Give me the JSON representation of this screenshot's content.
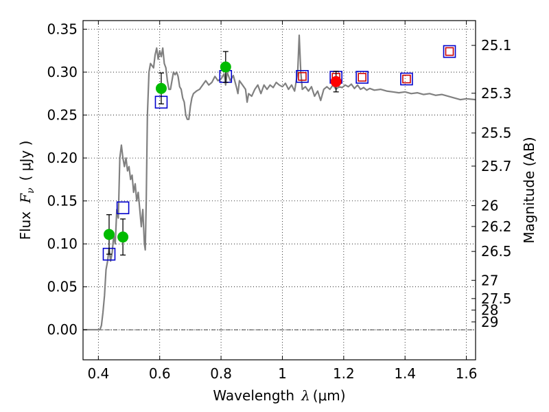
{
  "chart_data": {
    "type": "scatter",
    "xlabel_text": "Wavelength",
    "xlabel_math": "λ",
    "xlabel_unit": "(μm)",
    "ylabel_text": "Flux",
    "ylabel_math": "F",
    "ylabel_sub": "ν",
    "ylabel_unit": "( μJy )",
    "y2label": "Magnitude (AB)",
    "xlim": [
      0.35,
      1.63
    ],
    "ylim": [
      -0.035,
      0.36
    ],
    "xticks": [
      0.4,
      0.6,
      0.8,
      1.0,
      1.2,
      1.4,
      1.6
    ],
    "xtick_labels": [
      "0.4",
      "0.6",
      "0.8",
      "1",
      "1.2",
      "1.4",
      "1.6"
    ],
    "yticks": [
      0.0,
      0.05,
      0.1,
      0.15,
      0.2,
      0.25,
      0.3,
      0.35
    ],
    "ytick_labels": [
      "0.00",
      "0.05",
      "0.10",
      "0.15",
      "0.20",
      "0.25",
      "0.30",
      "0.35"
    ],
    "mag_ticks": [
      {
        "mag": 25.1,
        "label": "25.1"
      },
      {
        "mag": 25.3,
        "label": "25.3"
      },
      {
        "mag": 25.5,
        "label": "25.5"
      },
      {
        "mag": 25.7,
        "label": "25.7"
      },
      {
        "mag": 26.0,
        "label": "26"
      },
      {
        "mag": 26.2,
        "label": "26.2"
      },
      {
        "mag": 26.5,
        "label": "26.5"
      },
      {
        "mag": 27.0,
        "label": "27"
      },
      {
        "mag": 27.5,
        "label": "27.5"
      },
      {
        "mag": 28.0,
        "label": "28"
      },
      {
        "mag": 29.0,
        "label": "29"
      }
    ],
    "zero_line": true,
    "grid": true,
    "series": [
      {
        "name": "model spectrum",
        "kind": "line",
        "color": "#808080",
        "points": [
          [
            0.35,
            0.0
          ],
          [
            0.405,
            0.0
          ],
          [
            0.41,
            0.005
          ],
          [
            0.415,
            0.02
          ],
          [
            0.42,
            0.04
          ],
          [
            0.425,
            0.07
          ],
          [
            0.43,
            0.08
          ],
          [
            0.435,
            0.095
          ],
          [
            0.44,
            0.08
          ],
          [
            0.445,
            0.09
          ],
          [
            0.45,
            0.11
          ],
          [
            0.455,
            0.1
          ],
          [
            0.46,
            0.14
          ],
          [
            0.465,
            0.13
          ],
          [
            0.47,
            0.2
          ],
          [
            0.475,
            0.215
          ],
          [
            0.48,
            0.2
          ],
          [
            0.485,
            0.19
          ],
          [
            0.49,
            0.2
          ],
          [
            0.495,
            0.185
          ],
          [
            0.5,
            0.19
          ],
          [
            0.505,
            0.175
          ],
          [
            0.51,
            0.18
          ],
          [
            0.515,
            0.16
          ],
          [
            0.52,
            0.17
          ],
          [
            0.525,
            0.15
          ],
          [
            0.53,
            0.16
          ],
          [
            0.535,
            0.14
          ],
          [
            0.54,
            0.12
          ],
          [
            0.545,
            0.14
          ],
          [
            0.55,
            0.1
          ],
          [
            0.553,
            0.093
          ],
          [
            0.556,
            0.15
          ],
          [
            0.56,
            0.25
          ],
          [
            0.565,
            0.3
          ],
          [
            0.57,
            0.31
          ],
          [
            0.58,
            0.305
          ],
          [
            0.585,
            0.32
          ],
          [
            0.59,
            0.328
          ],
          [
            0.595,
            0.315
          ],
          [
            0.6,
            0.325
          ],
          [
            0.605,
            0.318
          ],
          [
            0.61,
            0.328
          ],
          [
            0.615,
            0.31
          ],
          [
            0.62,
            0.305
          ],
          [
            0.625,
            0.29
          ],
          [
            0.63,
            0.28
          ],
          [
            0.635,
            0.28
          ],
          [
            0.64,
            0.29
          ],
          [
            0.645,
            0.3
          ],
          [
            0.65,
            0.297
          ],
          [
            0.655,
            0.3
          ],
          [
            0.66,
            0.295
          ],
          [
            0.665,
            0.283
          ],
          [
            0.67,
            0.28
          ],
          [
            0.675,
            0.27
          ],
          [
            0.68,
            0.265
          ],
          [
            0.685,
            0.25
          ],
          [
            0.69,
            0.245
          ],
          [
            0.695,
            0.245
          ],
          [
            0.7,
            0.26
          ],
          [
            0.705,
            0.27
          ],
          [
            0.71,
            0.275
          ],
          [
            0.72,
            0.278
          ],
          [
            0.73,
            0.28
          ],
          [
            0.74,
            0.285
          ],
          [
            0.75,
            0.29
          ],
          [
            0.76,
            0.285
          ],
          [
            0.77,
            0.288
          ],
          [
            0.78,
            0.295
          ],
          [
            0.79,
            0.29
          ],
          [
            0.8,
            0.292
          ],
          [
            0.81,
            0.298
          ],
          [
            0.815,
            0.285
          ],
          [
            0.82,
            0.3
          ],
          [
            0.83,
            0.29
          ],
          [
            0.84,
            0.296
          ],
          [
            0.85,
            0.283
          ],
          [
            0.855,
            0.275
          ],
          [
            0.86,
            0.29
          ],
          [
            0.87,
            0.285
          ],
          [
            0.88,
            0.28
          ],
          [
            0.885,
            0.265
          ],
          [
            0.89,
            0.275
          ],
          [
            0.9,
            0.272
          ],
          [
            0.91,
            0.28
          ],
          [
            0.92,
            0.285
          ],
          [
            0.93,
            0.275
          ],
          [
            0.94,
            0.285
          ],
          [
            0.95,
            0.28
          ],
          [
            0.96,
            0.285
          ],
          [
            0.97,
            0.282
          ],
          [
            0.98,
            0.288
          ],
          [
            0.99,
            0.285
          ],
          [
            1.0,
            0.283
          ],
          [
            1.01,
            0.287
          ],
          [
            1.02,
            0.28
          ],
          [
            1.03,
            0.285
          ],
          [
            1.04,
            0.278
          ],
          [
            1.05,
            0.3
          ],
          [
            1.055,
            0.343
          ],
          [
            1.06,
            0.3
          ],
          [
            1.065,
            0.28
          ],
          [
            1.075,
            0.283
          ],
          [
            1.085,
            0.278
          ],
          [
            1.095,
            0.283
          ],
          [
            1.105,
            0.272
          ],
          [
            1.115,
            0.278
          ],
          [
            1.125,
            0.267
          ],
          [
            1.135,
            0.28
          ],
          [
            1.145,
            0.283
          ],
          [
            1.155,
            0.28
          ],
          [
            1.165,
            0.285
          ],
          [
            1.175,
            0.28
          ],
          [
            1.185,
            0.283
          ],
          [
            1.195,
            0.282
          ],
          [
            1.205,
            0.285
          ],
          [
            1.215,
            0.283
          ],
          [
            1.225,
            0.286
          ],
          [
            1.235,
            0.281
          ],
          [
            1.245,
            0.285
          ],
          [
            1.255,
            0.28
          ],
          [
            1.265,
            0.282
          ],
          [
            1.275,
            0.279
          ],
          [
            1.285,
            0.281
          ],
          [
            1.3,
            0.279
          ],
          [
            1.32,
            0.28
          ],
          [
            1.34,
            0.278
          ],
          [
            1.36,
            0.277
          ],
          [
            1.38,
            0.276
          ],
          [
            1.4,
            0.277
          ],
          [
            1.42,
            0.275
          ],
          [
            1.44,
            0.276
          ],
          [
            1.46,
            0.274
          ],
          [
            1.48,
            0.275
          ],
          [
            1.5,
            0.273
          ],
          [
            1.52,
            0.274
          ],
          [
            1.54,
            0.272
          ],
          [
            1.56,
            0.27
          ],
          [
            1.58,
            0.268
          ],
          [
            1.6,
            0.269
          ],
          [
            1.63,
            0.268
          ]
        ]
      },
      {
        "name": "model photometry (squares)",
        "kind": "marker",
        "marker": "square",
        "stroke": "#0000cc",
        "points": [
          [
            0.435,
            0.088
          ],
          [
            0.48,
            0.142
          ],
          [
            0.605,
            0.265
          ],
          [
            0.815,
            0.295
          ],
          [
            1.065,
            0.295
          ],
          [
            1.175,
            0.294
          ],
          [
            1.26,
            0.294
          ],
          [
            1.405,
            0.292
          ],
          [
            1.545,
            0.324
          ]
        ]
      },
      {
        "name": "inner model markers",
        "kind": "marker",
        "marker": "small-square",
        "stroke": "#cc0000",
        "points": [
          [
            1.065,
            0.295
          ],
          [
            1.175,
            0.294
          ],
          [
            1.26,
            0.294
          ],
          [
            1.405,
            0.292
          ],
          [
            1.545,
            0.324
          ]
        ]
      },
      {
        "name": "observed detections",
        "kind": "marker",
        "marker": "circle",
        "fill": "#00bb00",
        "points": [
          {
            "x": 0.435,
            "y": 0.111,
            "err": 0.023
          },
          {
            "x": 0.48,
            "y": 0.108,
            "err": 0.021
          },
          {
            "x": 0.605,
            "y": 0.281,
            "err": 0.018
          },
          {
            "x": 0.815,
            "y": 0.306,
            "err": 0.018
          }
        ]
      },
      {
        "name": "observed (red)",
        "kind": "marker",
        "marker": "circle",
        "fill": "#ff0000",
        "points": [
          {
            "x": 1.175,
            "y": 0.289,
            "err": 0.012
          }
        ]
      }
    ]
  }
}
